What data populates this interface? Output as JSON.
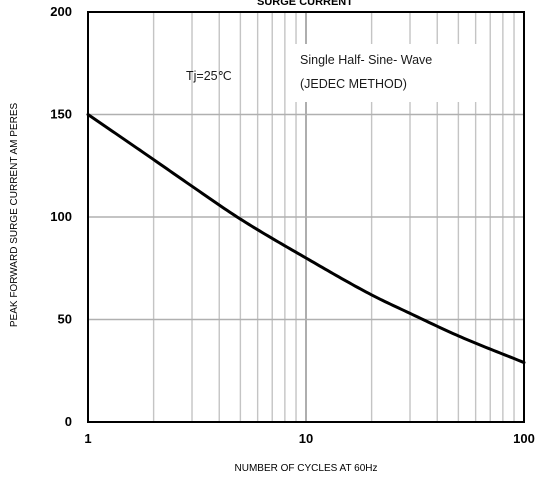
{
  "chart_data": {
    "type": "line",
    "title": "SURGE CURRENT",
    "xlabel": "NUMBER OF CYCLES AT 60Hz",
    "ylabel": "PEAK FORWARD SURGE CURRENT AM PERES",
    "x_scale": "log",
    "xlim": [
      1,
      100
    ],
    "ylim": [
      0,
      200
    ],
    "x_ticks": [
      1,
      10,
      100
    ],
    "x_tick_labels": [
      "1",
      "10",
      "100"
    ],
    "y_ticks": [
      0,
      50,
      100,
      150,
      200
    ],
    "y_tick_labels": [
      "0",
      "50",
      "100",
      "150",
      "200"
    ],
    "grid": true,
    "annotations": [
      "Tj=25℃",
      "Single Half- Sine- Wave",
      "(JEDEC METHOD)"
    ],
    "series": [
      {
        "x": [
          1,
          2,
          3,
          5,
          10,
          20,
          30,
          50,
          100
        ],
        "y": [
          150,
          128,
          115,
          99,
          80,
          62,
          53,
          42,
          29
        ],
        "color": "#000000"
      }
    ]
  }
}
